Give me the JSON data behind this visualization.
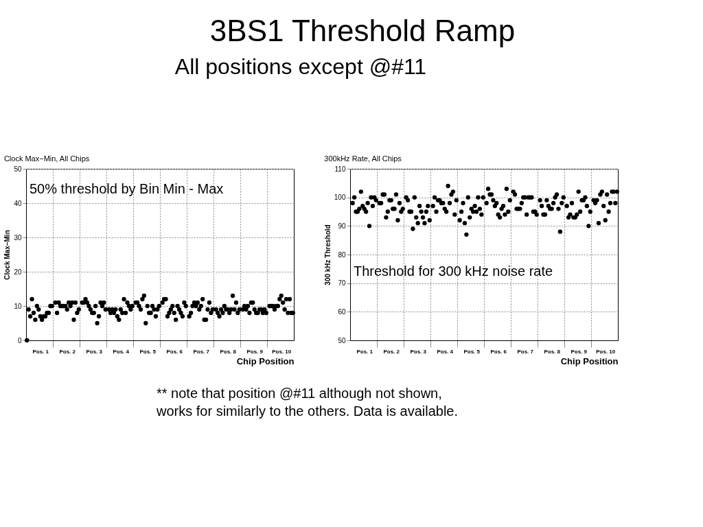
{
  "chart_data": [
    {
      "type": "other",
      "title": "3BS1 Threshold Ramp",
      "subtitle": "All positions except @#11",
      "annotations": [
        "** note that  position @#11 although not shown,\nworks for similarly to the others. Data is available."
      ]
    },
    {
      "type": "scatter",
      "title": "Clock Max−Min, All Chips",
      "xlabel": "Chip Position",
      "ylabel": "Clock Max−Min",
      "annotations": [
        "50% threshold by Bin Min - Max"
      ],
      "marker": "circle",
      "grid": true,
      "ylim": [
        0,
        50
      ],
      "yticks": [
        0,
        10,
        20,
        30,
        40,
        50
      ],
      "categories": [
        null,
        null,
        null,
        null,
        null,
        null,
        null,
        null,
        "Pos. 1",
        null,
        null,
        null,
        null,
        null,
        null,
        null,
        null,
        null,
        null,
        null,
        null,
        null,
        null,
        null,
        "Pos. 2",
        null,
        null,
        null,
        null,
        null,
        null,
        null,
        null,
        null,
        null,
        null,
        null,
        null,
        null,
        null,
        "Pos. 3",
        null,
        null,
        null,
        null,
        null,
        null,
        null,
        null,
        null,
        null,
        null,
        null,
        null,
        null,
        null,
        "Pos. 4",
        null,
        null,
        null,
        null,
        null,
        null,
        null,
        null,
        null,
        null,
        null,
        null,
        null,
        null,
        null,
        "Pos. 5",
        null,
        null,
        null,
        null,
        null,
        null,
        null,
        null,
        null,
        null,
        null,
        null,
        null,
        null,
        null,
        "Pos. 6",
        null,
        null,
        null,
        null,
        null,
        null,
        null,
        null,
        null,
        null,
        null,
        null,
        null,
        null,
        null,
        "Pos. 7",
        null,
        null,
        null,
        null,
        null,
        null,
        null,
        null,
        null,
        null,
        null,
        null,
        null,
        null,
        null,
        "Pos. 8",
        null,
        null,
        null,
        null,
        null,
        null,
        null,
        null,
        null,
        null,
        null,
        null,
        null,
        null,
        null,
        "Pos. 9",
        null,
        null,
        null,
        null,
        null,
        null,
        null,
        null,
        null,
        null,
        null,
        null,
        null,
        null,
        null,
        "Pos. 10",
        null,
        null,
        null,
        null,
        null,
        null,
        null
      ],
      "series": [
        {
          "color": "#000000",
          "values": [
            0,
            9,
            7,
            12,
            8,
            6,
            10,
            9,
            7,
            6,
            7,
            7,
            8,
            8,
            10,
            10,
            null,
            11,
            8,
            11,
            10,
            10,
            10,
            10,
            9,
            11,
            10,
            11,
            6,
            11,
            8,
            9,
            null,
            11,
            11,
            12,
            11,
            10,
            9,
            8,
            8,
            10,
            5,
            7,
            11,
            10,
            11,
            9,
            null,
            9,
            8,
            9,
            8,
            9,
            7,
            6,
            9,
            8,
            12,
            8,
            11,
            10,
            9,
            10,
            null,
            11,
            11,
            10,
            9,
            12,
            13,
            5,
            10,
            8,
            8,
            10,
            9,
            7,
            9,
            10,
            null,
            11,
            12,
            12,
            7,
            8,
            9,
            10,
            8,
            6,
            10,
            9,
            8,
            7,
            11,
            10,
            null,
            7,
            8,
            10,
            11,
            10,
            11,
            9,
            10,
            12,
            6,
            6,
            9,
            11,
            8,
            9,
            null,
            9,
            8,
            7,
            9,
            8,
            10,
            9,
            9,
            8,
            9,
            13,
            9,
            11,
            8,
            9,
            null,
            9,
            10,
            9,
            10,
            8,
            11,
            11,
            9,
            8,
            8,
            9,
            9,
            8,
            9,
            8,
            null,
            10,
            10,
            10,
            9,
            10,
            10,
            12,
            13,
            11,
            9,
            12,
            8,
            12,
            8,
            8
          ]
        }
      ]
    },
    {
      "type": "scatter",
      "title": "300kHz Rate, All Chips",
      "xlabel": "Chip Position",
      "ylabel": "300 kHz Threshold",
      "annotations": [
        "Threshold for 300 kHz  noise rate"
      ],
      "marker": "circle",
      "grid": true,
      "ylim": [
        50,
        110
      ],
      "yticks": [
        50,
        60,
        70,
        80,
        90,
        100,
        110
      ],
      "categories": [
        null,
        null,
        null,
        null,
        null,
        null,
        null,
        null,
        "Pos. 1",
        null,
        null,
        null,
        null,
        null,
        null,
        null,
        null,
        null,
        null,
        null,
        null,
        null,
        null,
        null,
        "Pos. 2",
        null,
        null,
        null,
        null,
        null,
        null,
        null,
        null,
        null,
        null,
        null,
        null,
        null,
        null,
        null,
        "Pos. 3",
        null,
        null,
        null,
        null,
        null,
        null,
        null,
        null,
        null,
        null,
        null,
        null,
        null,
        null,
        null,
        "Pos. 4",
        null,
        null,
        null,
        null,
        null,
        null,
        null,
        null,
        null,
        null,
        null,
        null,
        null,
        null,
        null,
        "Pos. 5",
        null,
        null,
        null,
        null,
        null,
        null,
        null,
        null,
        null,
        null,
        null,
        null,
        null,
        null,
        null,
        "Pos. 6",
        null,
        null,
        null,
        null,
        null,
        null,
        null,
        null,
        null,
        null,
        null,
        null,
        null,
        null,
        null,
        "Pos. 7",
        null,
        null,
        null,
        null,
        null,
        null,
        null,
        null,
        null,
        null,
        null,
        null,
        null,
        null,
        null,
        "Pos. 8",
        null,
        null,
        null,
        null,
        null,
        null,
        null,
        null,
        null,
        null,
        null,
        null,
        null,
        null,
        null,
        "Pos. 9",
        null,
        null,
        null,
        null,
        null,
        null,
        null,
        null,
        null,
        null,
        null,
        null,
        null,
        null,
        null,
        "Pos. 10",
        null,
        null,
        null,
        null,
        null,
        null,
        null
      ],
      "series": [
        {
          "color": "#000000",
          "values": [
            null,
            98,
            100,
            95,
            95,
            96,
            102,
            97,
            96,
            95,
            98,
            90,
            100,
            97,
            100,
            99,
            null,
            98,
            98,
            101,
            101,
            93,
            95,
            99,
            99,
            96,
            96,
            101,
            92,
            98,
            95,
            96,
            null,
            100,
            99,
            95,
            95,
            89,
            100,
            93,
            91,
            97,
            95,
            93,
            91,
            95,
            97,
            92,
            null,
            97,
            100,
            95,
            99,
            99,
            98,
            98,
            96,
            95,
            104,
            98,
            101,
            102,
            94,
            99,
            null,
            92,
            95,
            98,
            91,
            87,
            100,
            93,
            96,
            95,
            97,
            95,
            100,
            96,
            94,
            100,
            null,
            98,
            103,
            101,
            101,
            99,
            97,
            98,
            94,
            93,
            96,
            97,
            94,
            103,
            95,
            99,
            null,
            102,
            101,
            96,
            96,
            96,
            98,
            100,
            100,
            94,
            100,
            100,
            100,
            95,
            95,
            94,
            null,
            99,
            97,
            94,
            94,
            99,
            97,
            96,
            96,
            98,
            100,
            101,
            96,
            88,
            98,
            100,
            null,
            97,
            93,
            94,
            98,
            93,
            93,
            94,
            102,
            95,
            99,
            99,
            100,
            97,
            90,
            95,
            null,
            99,
            98,
            99,
            91,
            101,
            102,
            97,
            92,
            101,
            95,
            98,
            102,
            102,
            98,
            102
          ]
        }
      ]
    }
  ]
}
